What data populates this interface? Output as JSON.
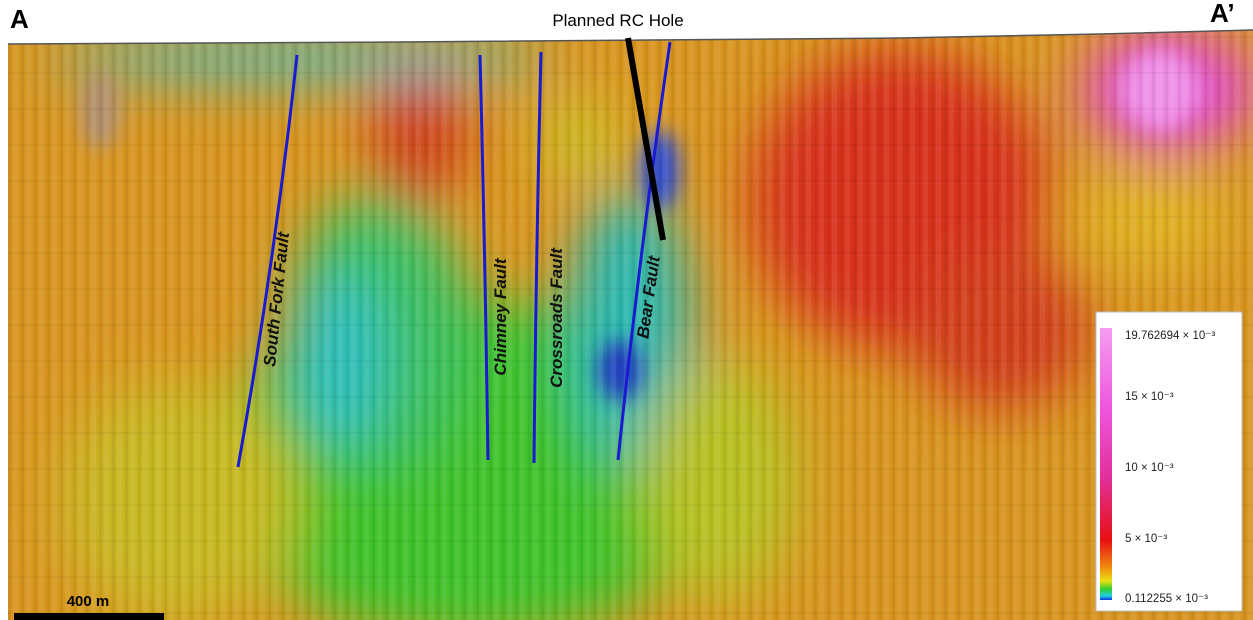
{
  "section": {
    "start_label": "A",
    "end_label": "A’"
  },
  "planned_hole": {
    "label": "Planned RC Hole"
  },
  "faults": [
    {
      "label": "South Fork Fault"
    },
    {
      "label": "Chimney Fault"
    },
    {
      "label": "Crossroads Fault"
    },
    {
      "label": "Bear Fault"
    }
  ],
  "scale_bar": {
    "label": "400 m"
  },
  "legend": {
    "labels": [
      "19.762694 × 10⁻³",
      "15 × 10⁻³",
      "10 × 10⁻³",
      "5 × 10⁻³",
      "0.112255 × 10⁻³"
    ]
  }
}
